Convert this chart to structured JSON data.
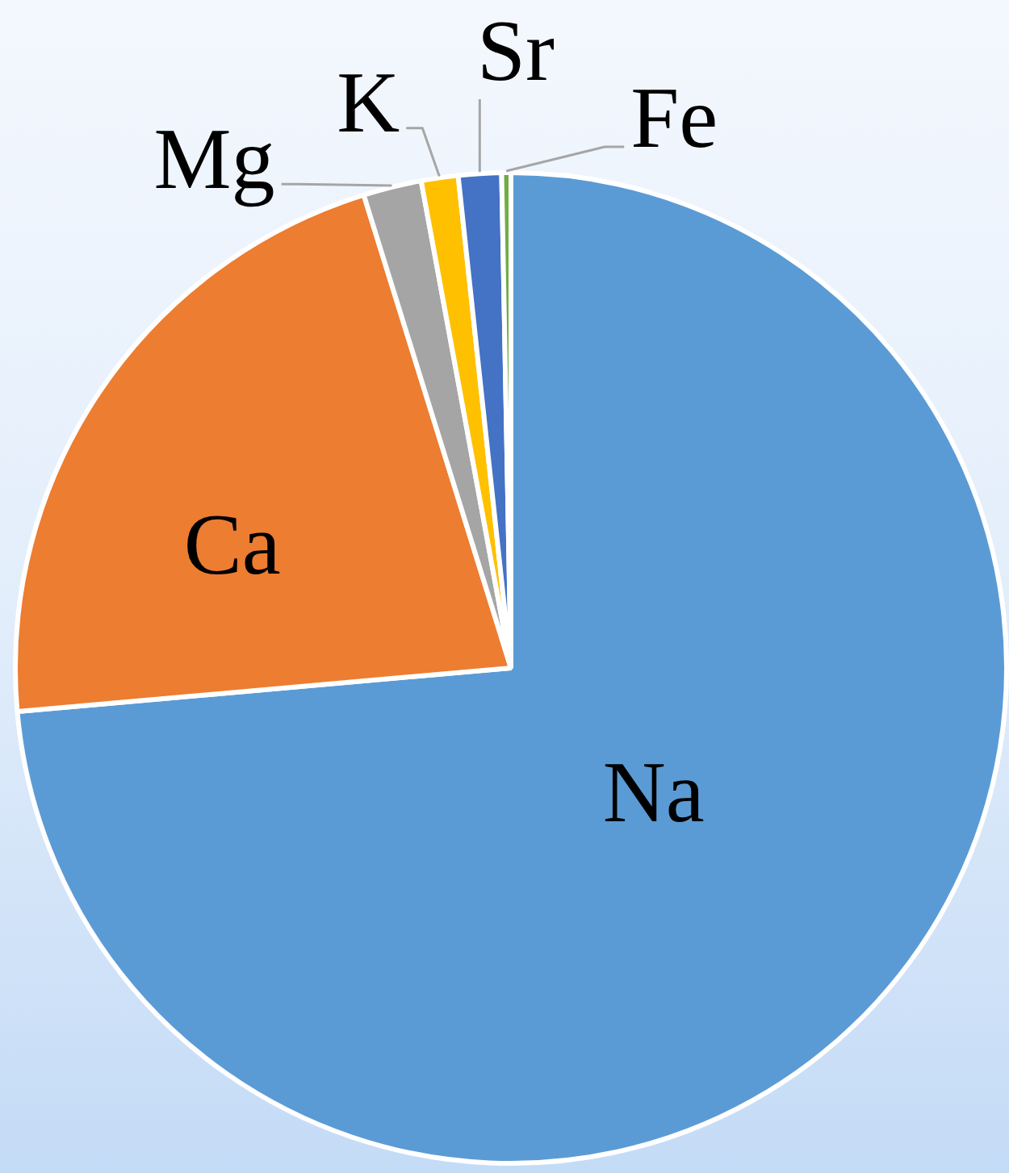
{
  "chart_data": {
    "type": "pie",
    "categories": [
      "Na",
      "Ca",
      "Mg",
      "K",
      "Sr",
      "Fe"
    ],
    "values": [
      73.6,
      21.6,
      1.9,
      1.2,
      1.4,
      0.3
    ],
    "colors": [
      "#5b9bd5",
      "#ed7d31",
      "#a5a5a5",
      "#ffc000",
      "#4472c4",
      "#70ad47"
    ]
  }
}
